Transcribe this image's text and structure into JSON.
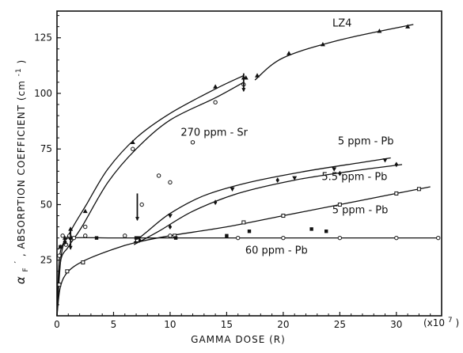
{
  "chart_data": {
    "type": "line",
    "title": "",
    "xlabel": "GAMMA DOSE (R)",
    "x_multiplier_label": "(x10",
    "x_multiplier_exp": "7",
    "x_multiplier_close": ")",
    "ylabel_parts": [
      "α",
      "F",
      "′",
      ", ABSORPTION COEFFICIENT (cm",
      "-1",
      ")"
    ],
    "xlim": [
      0,
      34
    ],
    "ylim": [
      0,
      137
    ],
    "xticks": [
      0,
      5,
      10,
      15,
      20,
      25,
      30
    ],
    "yticks": [
      25,
      50,
      75,
      100,
      125
    ],
    "xtick_labels": [
      "0",
      "5",
      "10",
      "15",
      "20",
      "25",
      "30"
    ],
    "ytick_labels": [
      "25",
      "50",
      "75",
      "100",
      "125"
    ],
    "grid": false,
    "series": [
      {
        "name": "LZ4",
        "marker": "triangle",
        "points": [
          [
            16.7,
            107
          ],
          [
            17.7,
            108
          ],
          [
            20.5,
            118
          ],
          [
            23.5,
            122
          ],
          [
            28.5,
            128
          ],
          [
            31,
            130
          ]
        ],
        "curve": [
          [
            17.5,
            106
          ],
          [
            20,
            116
          ],
          [
            25,
            124
          ],
          [
            31.5,
            131
          ]
        ]
      },
      {
        "name": "270 ppm - Sr",
        "marker": "triangle",
        "points": [
          [
            0.3,
            31
          ],
          [
            0.7,
            35
          ],
          [
            1.2,
            39
          ],
          [
            2.5,
            47
          ],
          [
            6.7,
            78
          ],
          [
            14,
            103
          ],
          [
            16.5,
            107
          ]
        ],
        "curve": [
          [
            0,
            0
          ],
          [
            0.4,
            28
          ],
          [
            1.2,
            38
          ],
          [
            2.6,
            50
          ],
          [
            4.5,
            66
          ],
          [
            7,
            80
          ],
          [
            10,
            91
          ],
          [
            14,
            102
          ],
          [
            16.5,
            108
          ]
        ]
      },
      {
        "name": "270 ppm - Sr (circles)",
        "marker": "circle",
        "points": [
          [
            0.2,
            27
          ],
          [
            0.8,
            32
          ],
          [
            1.5,
            35
          ],
          [
            2.5,
            40
          ],
          [
            6.7,
            75
          ],
          [
            14,
            96
          ],
          [
            16.5,
            104
          ],
          [
            7.5,
            50
          ],
          [
            9,
            63
          ],
          [
            10,
            60
          ],
          [
            12,
            78
          ]
        ],
        "curve": [
          [
            0,
            0
          ],
          [
            0.3,
            24
          ],
          [
            1,
            31
          ],
          [
            2.2,
            40
          ],
          [
            4.5,
            60
          ],
          [
            7,
            75
          ],
          [
            10,
            88
          ],
          [
            14,
            98
          ],
          [
            16.5,
            105
          ]
        ]
      },
      {
        "name": "5 ppm - Pb",
        "marker": "inverted-triangle",
        "points": [
          [
            7.2,
            35
          ],
          [
            10,
            45
          ],
          [
            15.5,
            57
          ],
          [
            21,
            62
          ],
          [
            24.5,
            66
          ],
          [
            29,
            70
          ]
        ],
        "curve": [
          [
            6.8,
            33
          ],
          [
            8,
            38
          ],
          [
            10,
            46
          ],
          [
            13,
            54
          ],
          [
            17,
            60
          ],
          [
            22,
            65
          ],
          [
            27,
            69
          ],
          [
            29.5,
            71
          ]
        ]
      },
      {
        "name": "5.5 ppm - Pb",
        "marker": "diamond",
        "points": [
          [
            7.3,
            34
          ],
          [
            10,
            40
          ],
          [
            14,
            51
          ],
          [
            19.5,
            61
          ],
          [
            25,
            64
          ],
          [
            30,
            68
          ]
        ],
        "curve": [
          [
            6.8,
            32
          ],
          [
            9,
            38
          ],
          [
            12,
            47
          ],
          [
            16,
            55
          ],
          [
            21,
            61
          ],
          [
            26,
            65
          ],
          [
            30.5,
            68
          ]
        ]
      },
      {
        "name": "5 ppm - Pb (open squares)",
        "marker": "open-square",
        "points": [
          [
            0.2,
            14
          ],
          [
            0.9,
            20
          ],
          [
            2.3,
            24
          ],
          [
            7.1,
            34
          ],
          [
            10.4,
            36
          ],
          [
            16.5,
            42
          ],
          [
            20,
            45
          ],
          [
            25,
            50
          ],
          [
            30,
            55
          ],
          [
            32,
            57
          ]
        ],
        "curve": [
          [
            0,
            0
          ],
          [
            0.3,
            13
          ],
          [
            1,
            20
          ],
          [
            2.5,
            25
          ],
          [
            5,
            30
          ],
          [
            7,
            33
          ],
          [
            10,
            36
          ],
          [
            15,
            40
          ],
          [
            20,
            45
          ],
          [
            25,
            50
          ],
          [
            30,
            55
          ],
          [
            33,
            58
          ]
        ]
      },
      {
        "name": "60 ppm - Pb",
        "marker": "filled-square",
        "points": [
          [
            0.3,
            31
          ],
          [
            0.7,
            33
          ],
          [
            1.2,
            35
          ],
          [
            3.5,
            35
          ],
          [
            7,
            35
          ],
          [
            10.5,
            35
          ],
          [
            15,
            36
          ],
          [
            17,
            38
          ],
          [
            22.5,
            39
          ],
          [
            23.8,
            38
          ]
        ],
        "curve": [
          [
            0,
            0
          ],
          [
            0.2,
            25
          ],
          [
            0.6,
            33
          ],
          [
            1.2,
            35
          ],
          [
            5,
            35
          ],
          [
            10,
            35
          ],
          [
            20,
            35
          ],
          [
            30,
            35
          ],
          [
            33.7,
            35
          ]
        ]
      },
      {
        "name": "60 ppm - Pb (open)",
        "marker": "circle",
        "points": [
          [
            0.5,
            36
          ],
          [
            1.1,
            36
          ],
          [
            2.5,
            36
          ],
          [
            6,
            36
          ],
          [
            10,
            36
          ],
          [
            16,
            35
          ],
          [
            20,
            35
          ],
          [
            25,
            35
          ],
          [
            30,
            35
          ],
          [
            33.7,
            35
          ]
        ],
        "curve": []
      }
    ],
    "series_labels": [
      {
        "text": "LZ4",
        "x": 25.2,
        "y": 130
      },
      {
        "text": "270 ppm - Sr",
        "x": 13.9,
        "y": 81
      },
      {
        "text": "5 ppm - Pb",
        "x": 27.3,
        "y": 77
      },
      {
        "text": "5.5 ppm - Pb",
        "x": 26.3,
        "y": 61
      },
      {
        "text": "5 ppm - Pb",
        "x": 26.8,
        "y": 46
      },
      {
        "text": "60 ppm - Pb",
        "x": 19.4,
        "y": 28
      }
    ],
    "arrows": [
      {
        "x": 1.2,
        "y_from": 39,
        "y_to": 30
      },
      {
        "x": 7.1,
        "y_from": 55,
        "y_to": 43
      },
      {
        "x": 16.5,
        "y_from": 109,
        "y_to": 101
      }
    ]
  }
}
